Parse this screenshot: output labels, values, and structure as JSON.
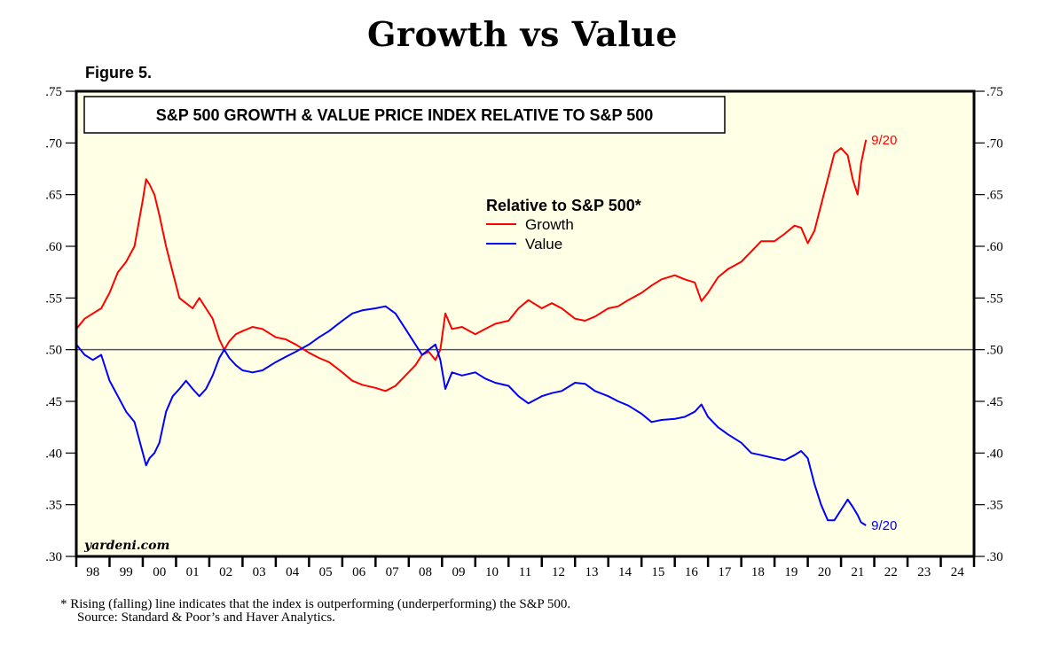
{
  "page": {
    "title": "Growth vs Value",
    "figure_label": "Figure 5.",
    "footnote": "*  Rising (falling) line indicates that the index is outperforming (underperforming) the S&P 500.",
    "source": "Source: Standard & Poor’s and Haver Analytics.",
    "watermark": "yardeni.com"
  },
  "chart_data": {
    "type": "line",
    "title": "S&P 500 GROWTH & VALUE PRICE INDEX RELATIVE TO S&P 500",
    "legend_title": "Relative to S&P 500*",
    "legend_position": "top-center",
    "xlabel": "",
    "ylabel": "",
    "xlim": [
      1998,
      2025
    ],
    "ylim": [
      0.3,
      0.75
    ],
    "y_ticks": [
      0.3,
      0.35,
      0.4,
      0.45,
      0.5,
      0.55,
      0.6,
      0.65,
      0.7,
      0.75
    ],
    "y_tick_labels": [
      ".30",
      ".35",
      ".40",
      ".45",
      ".50",
      ".55",
      ".60",
      ".65",
      ".70",
      ".75"
    ],
    "x_tick_labels": [
      "98",
      "99",
      "00",
      "01",
      "02",
      "03",
      "04",
      "05",
      "06",
      "07",
      "08",
      "09",
      "10",
      "11",
      "12",
      "13",
      "14",
      "15",
      "16",
      "17",
      "18",
      "19",
      "20",
      "21",
      "22",
      "23",
      "24"
    ],
    "reference_line": 0.5,
    "grid": false,
    "series": [
      {
        "name": "Growth",
        "color": "#ff0000",
        "end_label": "9/20",
        "x": [
          1998.0,
          1998.25,
          1998.5,
          1998.75,
          1999.0,
          1999.25,
          1999.5,
          1999.75,
          2000.0,
          2000.1,
          2000.2,
          2000.35,
          2000.5,
          2000.7,
          2000.9,
          2001.1,
          2001.3,
          2001.5,
          2001.7,
          2001.9,
          2002.1,
          2002.3,
          2002.45,
          2002.6,
          2002.8,
          2003.0,
          2003.3,
          2003.6,
          2004.0,
          2004.3,
          2004.6,
          2005.0,
          2005.3,
          2005.6,
          2006.0,
          2006.3,
          2006.6,
          2007.0,
          2007.3,
          2007.6,
          2007.9,
          2008.2,
          2008.4,
          2008.6,
          2008.8,
          2008.95,
          2009.1,
          2009.3,
          2009.6,
          2010.0,
          2010.3,
          2010.6,
          2011.0,
          2011.3,
          2011.6,
          2012.0,
          2012.3,
          2012.6,
          2013.0,
          2013.3,
          2013.6,
          2014.0,
          2014.3,
          2014.6,
          2015.0,
          2015.3,
          2015.6,
          2016.0,
          2016.3,
          2016.6,
          2016.8,
          2017.0,
          2017.3,
          2017.6,
          2018.0,
          2018.3,
          2018.6,
          2019.0,
          2019.3,
          2019.6,
          2019.8,
          2020.0,
          2020.2,
          2020.4,
          2020.6,
          2020.8,
          2021.0,
          2021.2,
          2021.35,
          2021.5,
          2021.6,
          2021.75
        ],
        "values": [
          0.52,
          0.53,
          0.535,
          0.54,
          0.555,
          0.575,
          0.585,
          0.6,
          0.645,
          0.665,
          0.66,
          0.65,
          0.63,
          0.6,
          0.575,
          0.55,
          0.545,
          0.54,
          0.55,
          0.54,
          0.53,
          0.51,
          0.5,
          0.508,
          0.515,
          0.518,
          0.522,
          0.52,
          0.512,
          0.51,
          0.505,
          0.497,
          0.492,
          0.488,
          0.478,
          0.47,
          0.466,
          0.463,
          0.46,
          0.465,
          0.475,
          0.485,
          0.495,
          0.498,
          0.49,
          0.5,
          0.535,
          0.52,
          0.522,
          0.515,
          0.52,
          0.525,
          0.528,
          0.54,
          0.548,
          0.54,
          0.545,
          0.54,
          0.53,
          0.528,
          0.532,
          0.54,
          0.542,
          0.548,
          0.555,
          0.562,
          0.568,
          0.572,
          0.568,
          0.565,
          0.547,
          0.555,
          0.57,
          0.578,
          0.585,
          0.595,
          0.605,
          0.605,
          0.612,
          0.62,
          0.618,
          0.603,
          0.615,
          0.64,
          0.665,
          0.69,
          0.695,
          0.688,
          0.665,
          0.65,
          0.68,
          0.703
        ]
      },
      {
        "name": "Value",
        "color": "#0000ff",
        "end_label": "9/20",
        "x": [
          1998.0,
          1998.25,
          1998.5,
          1998.75,
          1999.0,
          1999.25,
          1999.5,
          1999.75,
          2000.0,
          2000.1,
          2000.2,
          2000.35,
          2000.5,
          2000.7,
          2000.9,
          2001.1,
          2001.3,
          2001.5,
          2001.7,
          2001.9,
          2002.1,
          2002.3,
          2002.45,
          2002.6,
          2002.8,
          2003.0,
          2003.3,
          2003.6,
          2004.0,
          2004.3,
          2004.6,
          2005.0,
          2005.3,
          2005.6,
          2006.0,
          2006.3,
          2006.6,
          2007.0,
          2007.3,
          2007.6,
          2007.9,
          2008.2,
          2008.4,
          2008.6,
          2008.8,
          2008.95,
          2009.1,
          2009.3,
          2009.6,
          2010.0,
          2010.3,
          2010.6,
          2011.0,
          2011.3,
          2011.6,
          2012.0,
          2012.3,
          2012.6,
          2013.0,
          2013.3,
          2013.6,
          2014.0,
          2014.3,
          2014.6,
          2015.0,
          2015.3,
          2015.6,
          2016.0,
          2016.3,
          2016.6,
          2016.8,
          2017.0,
          2017.3,
          2017.6,
          2018.0,
          2018.3,
          2018.6,
          2019.0,
          2019.3,
          2019.6,
          2019.8,
          2020.0,
          2020.2,
          2020.4,
          2020.6,
          2020.8,
          2021.0,
          2021.2,
          2021.35,
          2021.5,
          2021.6,
          2021.75
        ],
        "values": [
          0.505,
          0.495,
          0.49,
          0.495,
          0.47,
          0.455,
          0.44,
          0.43,
          0.4,
          0.388,
          0.395,
          0.4,
          0.41,
          0.44,
          0.455,
          0.462,
          0.47,
          0.462,
          0.455,
          0.462,
          0.475,
          0.492,
          0.5,
          0.492,
          0.485,
          0.48,
          0.478,
          0.48,
          0.488,
          0.493,
          0.498,
          0.505,
          0.512,
          0.518,
          0.528,
          0.535,
          0.538,
          0.54,
          0.542,
          0.535,
          0.52,
          0.505,
          0.495,
          0.5,
          0.505,
          0.49,
          0.462,
          0.478,
          0.475,
          0.478,
          0.472,
          0.468,
          0.465,
          0.455,
          0.448,
          0.455,
          0.458,
          0.46,
          0.468,
          0.467,
          0.46,
          0.455,
          0.45,
          0.446,
          0.438,
          0.43,
          0.432,
          0.433,
          0.435,
          0.44,
          0.447,
          0.435,
          0.425,
          0.418,
          0.41,
          0.4,
          0.398,
          0.395,
          0.393,
          0.398,
          0.402,
          0.395,
          0.37,
          0.35,
          0.335,
          0.335,
          0.345,
          0.355,
          0.348,
          0.34,
          0.333,
          0.33
        ]
      }
    ]
  }
}
